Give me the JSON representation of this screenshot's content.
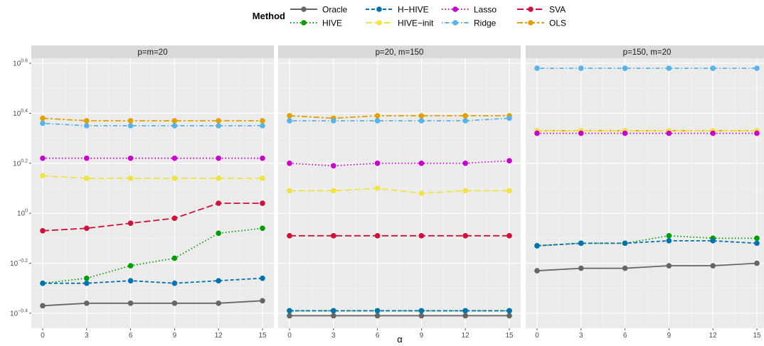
{
  "chart_data": {
    "type": "line",
    "legend": {
      "title": "Method",
      "placement": "top",
      "entries": [
        {
          "name": "Oracle",
          "color": "#666666",
          "dash": "solid"
        },
        {
          "name": "HIVE",
          "color": "#009E00",
          "dash": "dotted"
        },
        {
          "name": "H−HIVE",
          "color": "#0072B2",
          "dash": "dashed"
        },
        {
          "name": "HIVE−init",
          "color": "#F0E442",
          "dash": "longdash"
        },
        {
          "name": "Lasso",
          "color": "#CC00CC",
          "dash": "dotted"
        },
        {
          "name": "Ridge",
          "color": "#56B4E9",
          "dash": "dotdash"
        },
        {
          "name": "SVA",
          "color": "#D0103A",
          "dash": "longdash"
        },
        {
          "name": "OLS",
          "color": "#E69F00",
          "dash": "twodash"
        }
      ]
    },
    "xlabel": "α",
    "x": [
      0,
      3,
      6,
      9,
      12,
      15
    ],
    "xticks": [
      "0",
      "3",
      "6",
      "9",
      "12",
      "15"
    ],
    "ylog_base": 10,
    "ylim_exponent": [
      -0.46,
      0.62
    ],
    "ytick_exponents": [
      -0.4,
      -0.2,
      0,
      0.2,
      0.4,
      0.6
    ],
    "ytick_labels": [
      {
        "base": "10",
        "exp": "−0.4"
      },
      {
        "base": "10",
        "exp": "−0.2"
      },
      {
        "base": "10",
        "exp": "0"
      },
      {
        "base": "10",
        "exp": "0.2"
      },
      {
        "base": "10",
        "exp": "0.4"
      },
      {
        "base": "10",
        "exp": "0.6"
      }
    ],
    "grid": true,
    "panels": [
      {
        "title": "p=m=20",
        "series": [
          {
            "name": "OLS",
            "exponents": [
              0.38,
              0.37,
              0.37,
              0.37,
              0.37,
              0.37
            ]
          },
          {
            "name": "Ridge",
            "exponents": [
              0.36,
              0.35,
              0.35,
              0.35,
              0.35,
              0.35
            ]
          },
          {
            "name": "Lasso",
            "exponents": [
              0.22,
              0.22,
              0.22,
              0.22,
              0.22,
              0.22
            ]
          },
          {
            "name": "HIVE−init",
            "exponents": [
              0.15,
              0.14,
              0.14,
              0.14,
              0.14,
              0.14
            ]
          },
          {
            "name": "SVA",
            "exponents": [
              -0.07,
              -0.06,
              -0.04,
              -0.02,
              0.04,
              0.04
            ]
          },
          {
            "name": "HIVE",
            "exponents": [
              -0.28,
              -0.26,
              -0.21,
              -0.18,
              -0.08,
              -0.06
            ]
          },
          {
            "name": "H−HIVE",
            "exponents": [
              -0.28,
              -0.28,
              -0.27,
              -0.28,
              -0.27,
              -0.26
            ]
          },
          {
            "name": "Oracle",
            "exponents": [
              -0.37,
              -0.36,
              -0.36,
              -0.36,
              -0.36,
              -0.35
            ]
          }
        ]
      },
      {
        "title": "p=20, m=150",
        "series": [
          {
            "name": "OLS",
            "exponents": [
              0.39,
              0.38,
              0.39,
              0.39,
              0.39,
              0.39
            ]
          },
          {
            "name": "Ridge",
            "exponents": [
              0.37,
              0.37,
              0.37,
              0.37,
              0.37,
              0.38
            ]
          },
          {
            "name": "Lasso",
            "exponents": [
              0.2,
              0.19,
              0.2,
              0.2,
              0.2,
              0.21
            ]
          },
          {
            "name": "HIVE−init",
            "exponents": [
              0.09,
              0.09,
              0.1,
              0.08,
              0.09,
              0.09
            ]
          },
          {
            "name": "SVA",
            "exponents": [
              -0.09,
              -0.09,
              -0.09,
              -0.09,
              -0.09,
              -0.09
            ]
          },
          {
            "name": "HIVE",
            "exponents": [
              -0.39,
              -0.39,
              -0.39,
              -0.39,
              -0.39,
              -0.39
            ]
          },
          {
            "name": "H−HIVE",
            "exponents": [
              -0.39,
              -0.39,
              -0.39,
              -0.39,
              -0.39,
              -0.39
            ]
          },
          {
            "name": "Oracle",
            "exponents": [
              -0.41,
              -0.41,
              -0.41,
              -0.41,
              -0.41,
              -0.41
            ]
          }
        ]
      },
      {
        "title": "p=150, m=20",
        "series": [
          {
            "name": "Ridge",
            "exponents": [
              0.58,
              0.58,
              0.58,
              0.58,
              0.58,
              0.58
            ]
          },
          {
            "name": "OLS",
            "exponents": [
              0.33,
              0.33,
              0.33,
              0.33,
              0.33,
              0.33
            ]
          },
          {
            "name": "HIVE−init",
            "exponents": [
              0.33,
              0.33,
              0.33,
              0.33,
              0.33,
              0.33
            ]
          },
          {
            "name": "Lasso",
            "exponents": [
              0.32,
              0.32,
              0.32,
              0.32,
              0.32,
              0.32
            ]
          },
          {
            "name": "HIVE",
            "exponents": [
              -0.13,
              -0.12,
              -0.12,
              -0.09,
              -0.1,
              -0.1
            ]
          },
          {
            "name": "H−HIVE",
            "exponents": [
              -0.13,
              -0.12,
              -0.12,
              -0.11,
              -0.11,
              -0.12
            ]
          },
          {
            "name": "Oracle",
            "exponents": [
              -0.23,
              -0.22,
              -0.22,
              -0.21,
              -0.21,
              -0.2
            ]
          }
        ]
      }
    ]
  }
}
